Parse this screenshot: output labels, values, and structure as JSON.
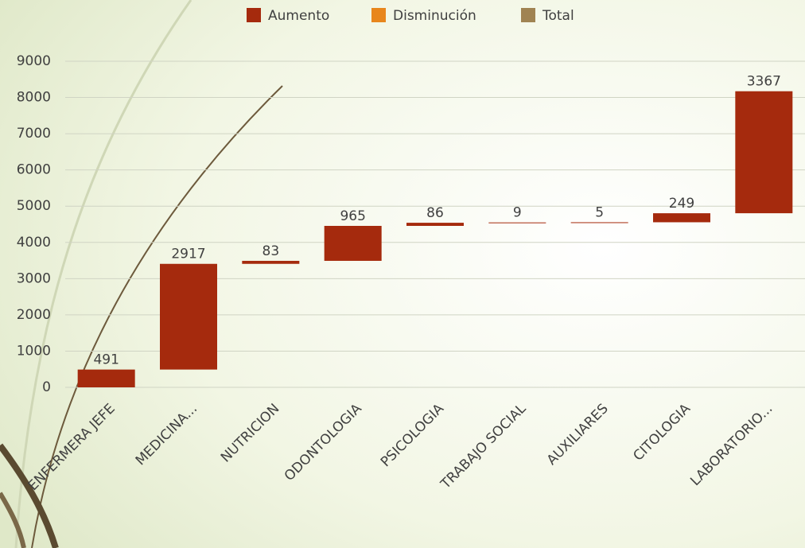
{
  "chart_data": {
    "type": "waterfall",
    "categories": [
      "ENFERMERA JEFE",
      "MEDICINA...",
      "NUTRICION",
      "ODONTOLOGIA",
      "PSICOLOGIA",
      "TRABAJO SOCIAL",
      "AUXILIARES",
      "CITOLOGIA",
      "LABORATORIO..."
    ],
    "series": [
      {
        "name": "Aumento",
        "color": "#a52a0d",
        "values": [
          491,
          2917,
          83,
          965,
          86,
          9,
          5,
          249,
          3367
        ]
      },
      {
        "name": "Disminución",
        "color": "#e8861c"
      },
      {
        "name": "Total",
        "color": "#a08352"
      }
    ],
    "ylim": [
      0,
      9000
    ],
    "yticks": [
      0,
      1000,
      2000,
      3000,
      4000,
      5000,
      6000,
      7000,
      8000,
      9000
    ],
    "grid": true,
    "legend": "top"
  }
}
